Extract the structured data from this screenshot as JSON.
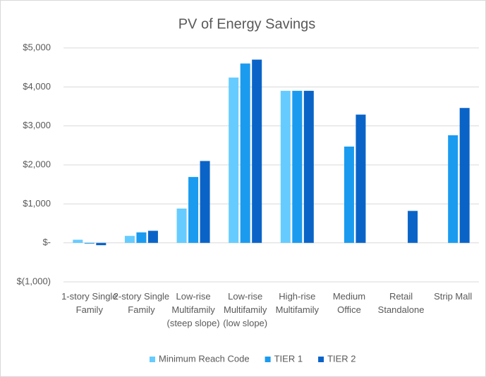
{
  "chart_data": {
    "type": "bar",
    "title": "PV of Energy Savings",
    "categories": [
      "1-story Single Family",
      "2-story Single Family",
      "Low-rise Multifamily (steep slope)",
      "Low-rise Multifamily (low slope)",
      "High-rise Multifamily",
      "Medium Office",
      "Retail Standalone",
      "Strip Mall"
    ],
    "series": [
      {
        "name": "Minimum Reach Code",
        "color": "#66ccff",
        "values": [
          80,
          180,
          880,
          4240,
          3900,
          null,
          null,
          null
        ]
      },
      {
        "name": "TIER 1",
        "color": "#1a9bf0",
        "values": [
          -20,
          270,
          1690,
          4600,
          3900,
          2470,
          null,
          2760
        ]
      },
      {
        "name": "TIER 2",
        "color": "#0a64c8",
        "values": [
          -60,
          310,
          2100,
          4700,
          3900,
          3290,
          820,
          3460
        ]
      }
    ],
    "ylim": [
      -1000,
      5000
    ],
    "yticks": [
      {
        "value": -1000,
        "label": "$(1,000)"
      },
      {
        "value": 0,
        "label": "$-"
      },
      {
        "value": 1000,
        "label": "$1,000"
      },
      {
        "value": 2000,
        "label": "$2,000"
      },
      {
        "value": 3000,
        "label": "$3,000"
      },
      {
        "value": 4000,
        "label": "$4,000"
      },
      {
        "value": 5000,
        "label": "$5,000"
      }
    ],
    "grid": true,
    "legend": "bottom"
  }
}
